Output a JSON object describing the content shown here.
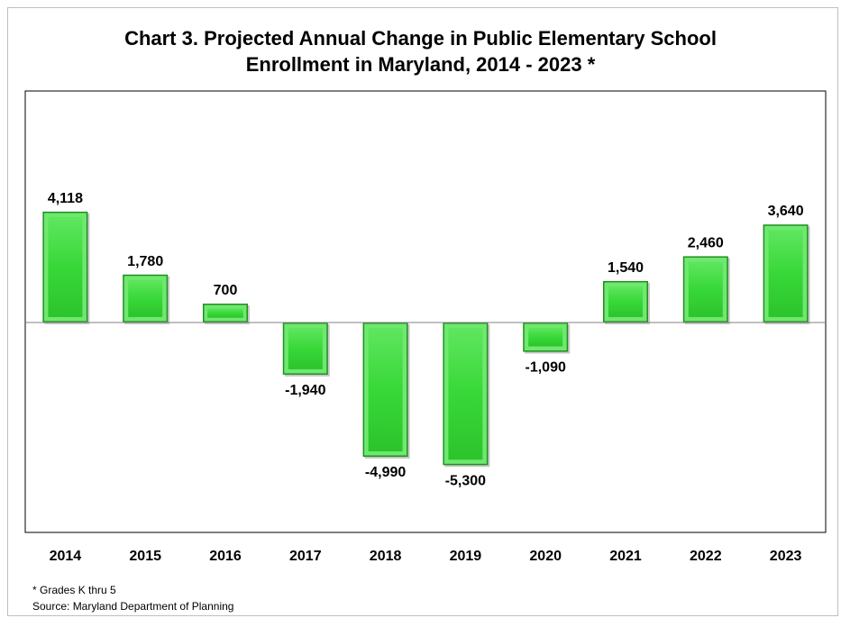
{
  "chart_data": {
    "type": "bar",
    "title_line1": "Chart 3.  Projected Annual Change in Public Elementary School",
    "title_line2": "Enrollment in Maryland, 2014 - 2023 *",
    "categories": [
      "2014",
      "2015",
      "2016",
      "2017",
      "2018",
      "2019",
      "2020",
      "2021",
      "2022",
      "2023"
    ],
    "values": [
      4118,
      1780,
      700,
      -1940,
      -4990,
      -5300,
      -1090,
      1540,
      2460,
      3640
    ],
    "data_labels": [
      "4,118",
      "1,780",
      "700",
      "-1,940",
      "-4,990",
      "-5,300",
      "-1,090",
      "1,540",
      "2,460",
      "3,640"
    ],
    "xlabel": "",
    "ylabel": "",
    "ylim": [
      -7800,
      8600
    ],
    "grid": false,
    "legend": "none",
    "bar_color": "#33cc33",
    "bar_highlight": "#6fe86f",
    "bar_shadow": "#1f8f1f"
  },
  "footnotes": {
    "note": "* Grades K thru 5",
    "source": "Source: Maryland Department of Planning"
  }
}
